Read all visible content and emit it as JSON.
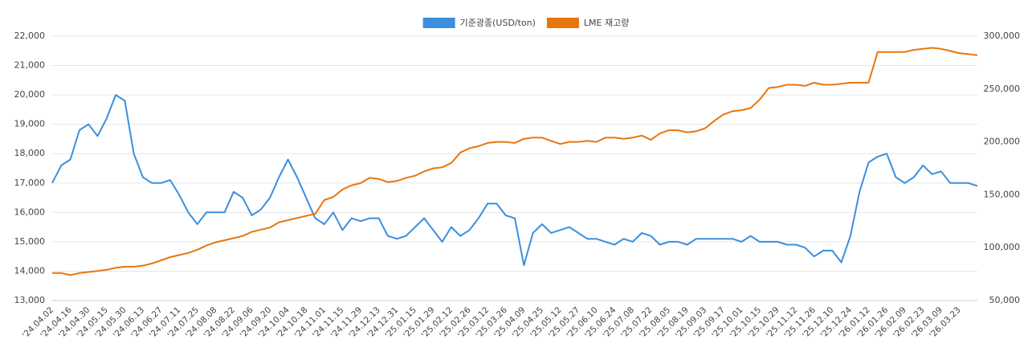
{
  "chart_data": {
    "type": "line",
    "categories": [
      "'24.04.02",
      null,
      "'24.04.16",
      null,
      "'24.04.30",
      null,
      "'24.05.15",
      null,
      "'24.05.30",
      null,
      "'24.06.13",
      null,
      "'24.06.27",
      null,
      "'24.07.11",
      null,
      "'24.07.25",
      null,
      "'24.08.08",
      null,
      "'24.08.22",
      null,
      "'24.09.06",
      null,
      "'24.09.20",
      null,
      "'24.10.04",
      null,
      "'24.10.18",
      null,
      "'24.11.01",
      null,
      "'24.11.15",
      null,
      "'24.11.29",
      null,
      "'24.12.13",
      null,
      "'24.12.31",
      null,
      "'25.01.15",
      null,
      "'25.01.29",
      null,
      "'25.02.12",
      null,
      "'25.02.26",
      null,
      "'25.03.12",
      null,
      "'25.03.26",
      null,
      "'25.04.09",
      null,
      "'25.04.25",
      null,
      "'25.05.12",
      null,
      "'25.05.27",
      null,
      "'25.06.10",
      null,
      "'25.06.24",
      null,
      "'25.07.08",
      null,
      "'25.07.22",
      null,
      "'25.08.05",
      null,
      "'25.08.19",
      null,
      "'25.09.03",
      null,
      "'25.09.17",
      null,
      "'25.10.01",
      null,
      "'25.10.15",
      null,
      "'25.10.29",
      null,
      "'25.11.12",
      null,
      "'25.11.26",
      null,
      "'25.12.10",
      null,
      "'25.12.24",
      null,
      "'26.01.12",
      null,
      "'26.01.26",
      null,
      "'26.02.09",
      null,
      "'26.02.23",
      null,
      "'26.03.09",
      null,
      "'26.03.23",
      null,
      null
    ],
    "series": [
      {
        "name": "기준광종(USD/ton)",
        "color": "#3a8fde",
        "axis": "y",
        "values": [
          17000,
          17600,
          17800,
          18800,
          19000,
          18600,
          19200,
          20000,
          19800,
          18000,
          17200,
          17000,
          17000,
          17100,
          16600,
          16000,
          15600,
          16000,
          16000,
          16000,
          16700,
          16500,
          15900,
          16100,
          16500,
          17200,
          17800,
          17200,
          16500,
          15800,
          15600,
          16000,
          15400,
          15800,
          15700,
          15800,
          15800,
          15200,
          15100,
          15200,
          15500,
          15800,
          15400,
          15000,
          15500,
          15200,
          15400,
          15800,
          16300,
          16300,
          15900,
          15800,
          14200,
          15300,
          15600,
          15300,
          15400,
          15500,
          15300,
          15100,
          15100,
          15000,
          14900,
          15100,
          15000,
          15300,
          15200,
          14900,
          15000,
          15000,
          14900,
          15100,
          15100,
          15100,
          15100,
          15100,
          15000,
          15200,
          15000,
          15000,
          15000,
          14900,
          14900,
          14800,
          14500,
          14700,
          14700,
          14300,
          15200,
          16700,
          17700,
          17900,
          18000,
          17200,
          17000,
          17200,
          17600,
          17300,
          17400,
          17000,
          17000,
          17000,
          16900
        ]
      },
      {
        "name": "LME 재고량",
        "color": "#e8760f",
        "axis": "y2",
        "values": [
          76000,
          76000,
          74000,
          76000,
          77000,
          78000,
          79000,
          81000,
          82000,
          82000,
          83000,
          85000,
          88000,
          91000,
          93000,
          95000,
          98000,
          102000,
          105000,
          107000,
          109000,
          111000,
          115000,
          117000,
          119000,
          124000,
          126000,
          128000,
          130000,
          132000,
          145000,
          148000,
          155000,
          159000,
          161000,
          166000,
          165000,
          162000,
          163000,
          166000,
          168000,
          172000,
          175000,
          176000,
          180000,
          190000,
          194000,
          196000,
          199000,
          200000,
          200000,
          199000,
          203000,
          204000,
          204000,
          201000,
          198000,
          200000,
          200000,
          201000,
          200000,
          204000,
          204000,
          203000,
          204000,
          206000,
          202000,
          208000,
          211000,
          211000,
          209000,
          210000,
          213000,
          220000,
          226000,
          229000,
          230000,
          232000,
          240000,
          251000,
          252000,
          254000,
          254000,
          253000,
          256000,
          254000,
          254000,
          255000,
          256000,
          256000,
          256000,
          285000,
          285000,
          285000,
          285000,
          287000,
          288000,
          289000,
          288000,
          286000,
          284000,
          283000,
          282000
        ]
      }
    ],
    "ylim": [
      13000,
      22000
    ],
    "yticks": [
      {
        "value": 13000,
        "label": "13,000"
      },
      {
        "value": 14000,
        "label": "14,000"
      },
      {
        "value": 15000,
        "label": "15,000"
      },
      {
        "value": 16000,
        "label": "16,000"
      },
      {
        "value": 17000,
        "label": "17,000"
      },
      {
        "value": 18000,
        "label": "18,000"
      },
      {
        "value": 19000,
        "label": "19,000"
      },
      {
        "value": 20000,
        "label": "20,000"
      },
      {
        "value": 21000,
        "label": "21,000"
      },
      {
        "value": 22000,
        "label": "22,000"
      }
    ],
    "y2lim": [
      50000,
      300000
    ],
    "y2ticks": [
      {
        "value": 50000,
        "label": "50,000"
      },
      {
        "value": 100000,
        "label": "100,000"
      },
      {
        "value": 150000,
        "label": "150,000"
      },
      {
        "value": 200000,
        "label": "200,000"
      },
      {
        "value": 250000,
        "label": "250,000"
      },
      {
        "value": 300000,
        "label": "300,000"
      }
    ],
    "grid": true,
    "legend": "top"
  }
}
